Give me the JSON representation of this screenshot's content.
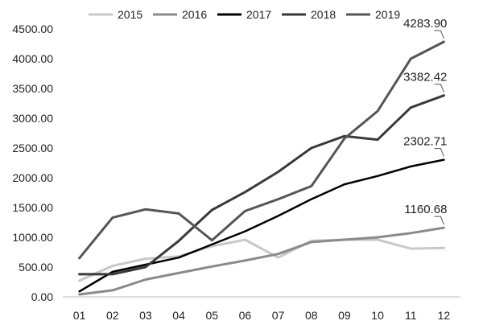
{
  "chart_data": {
    "type": "line",
    "categories": [
      "01",
      "02",
      "03",
      "04",
      "05",
      "06",
      "07",
      "08",
      "09",
      "10",
      "11",
      "12"
    ],
    "ylim": [
      0,
      4500
    ],
    "yticks": [
      "0.00",
      "500.00",
      "1000.00",
      "1500.00",
      "2000.00",
      "2500.00",
      "3000.00",
      "3500.00",
      "4000.00",
      "4500.00"
    ],
    "grid": false,
    "legend_position": "top",
    "series": [
      {
        "name": "2015",
        "color": "#c8c8c8",
        "width": 3,
        "values": [
          270,
          520,
          640,
          680,
          850,
          960,
          660,
          940,
          960,
          960,
          810,
          820
        ]
      },
      {
        "name": "2016",
        "color": "#8a8a8a",
        "width": 3,
        "values": [
          40,
          110,
          290,
          400,
          510,
          610,
          720,
          920,
          960,
          1000,
          1070,
          1160.68
        ]
      },
      {
        "name": "2017",
        "color": "#000000",
        "width": 2.5,
        "values": [
          90,
          420,
          540,
          660,
          880,
          1100,
          1360,
          1640,
          1890,
          2030,
          2190,
          2302.71
        ]
      },
      {
        "name": "2018",
        "color": "#3a3a3a",
        "width": 3,
        "values": [
          380,
          380,
          500,
          940,
          1460,
          1760,
          2100,
          2500,
          2700,
          2640,
          3180,
          3382.42
        ]
      },
      {
        "name": "2019",
        "color": "#555555",
        "width": 3,
        "values": [
          650,
          1330,
          1470,
          1400,
          950,
          1440,
          1640,
          1860,
          2660,
          3120,
          4000,
          4283.9
        ]
      }
    ],
    "annotations": [
      {
        "text": "4283.90",
        "series": "2019"
      },
      {
        "text": "3382.42",
        "series": "2018"
      },
      {
        "text": "2302.71",
        "series": "2017"
      },
      {
        "text": "1160.68",
        "series": "2016"
      }
    ]
  }
}
